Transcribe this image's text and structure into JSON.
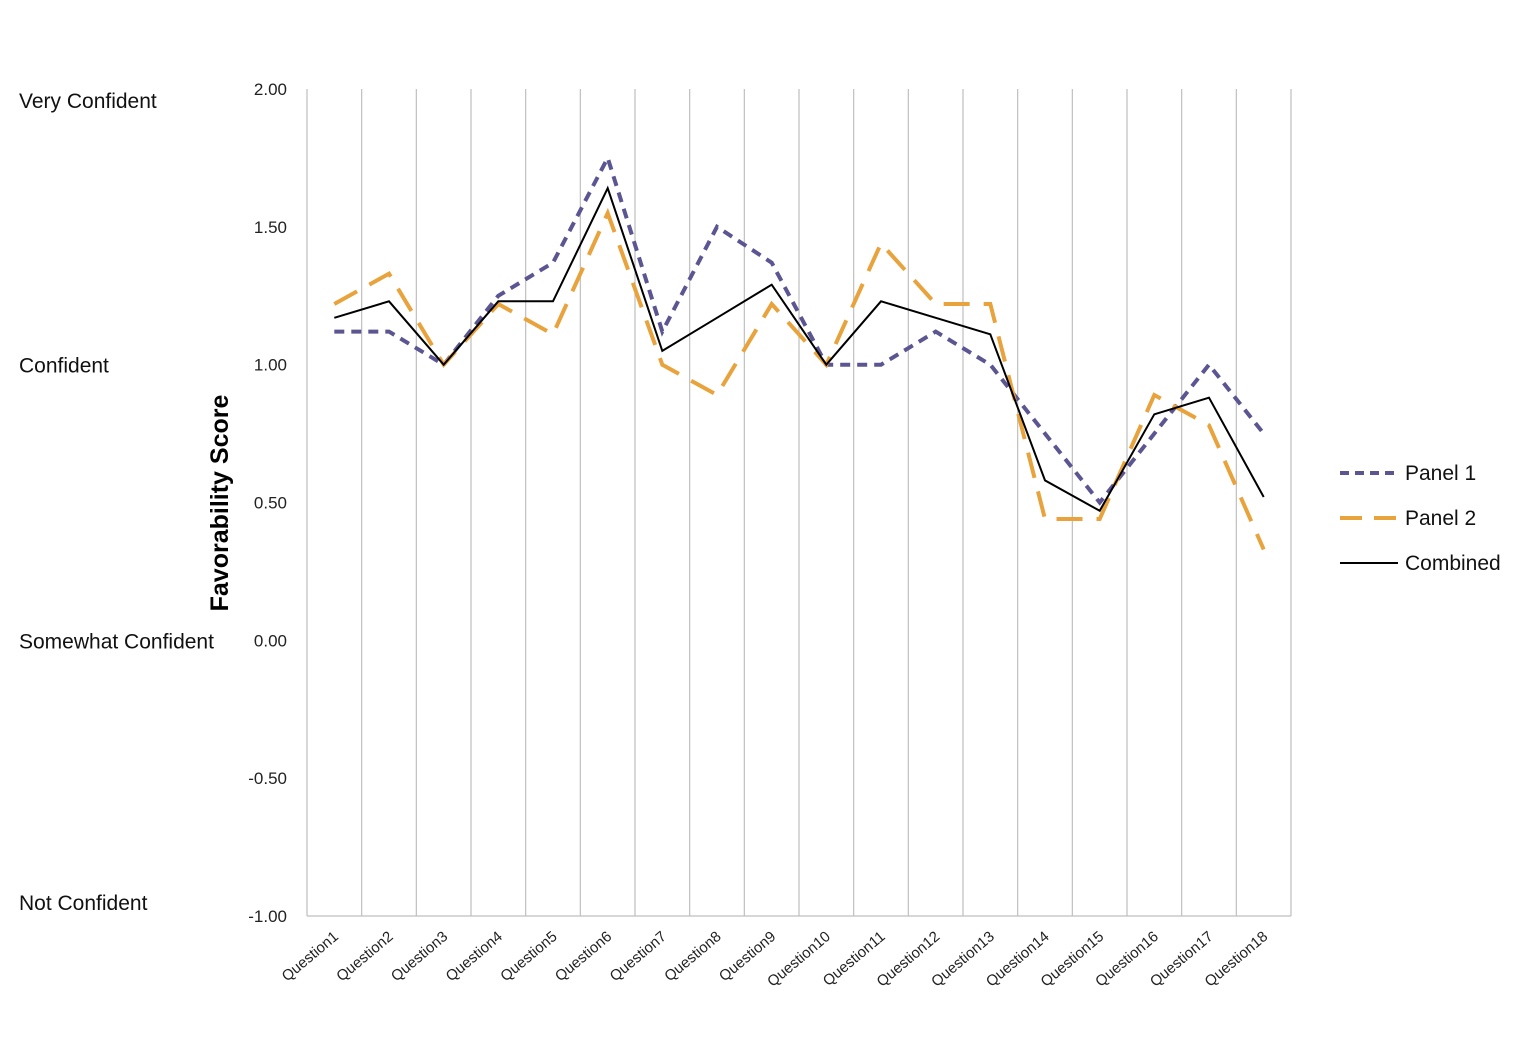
{
  "chart_data": {
    "type": "line",
    "title": "",
    "xlabel": "",
    "ylabel": "Favorability Score",
    "ylim": [
      -1.0,
      2.0
    ],
    "y_ticks": [
      2.0,
      1.5,
      1.0,
      0.5,
      0.0,
      -0.5,
      -1.0
    ],
    "y_tick_labels": [
      "2.00",
      "1.50",
      "1.00",
      "0.50",
      "0.00",
      "-0.50",
      "-1.00"
    ],
    "confidence_labels": [
      {
        "value": 2.0,
        "label": "Very Confident"
      },
      {
        "value": 1.0,
        "label": "Confident"
      },
      {
        "value": 0.0,
        "label": "Somewhat Confident"
      },
      {
        "value": -1.0,
        "label": "Not Confident"
      }
    ],
    "categories": [
      "Question1",
      "Question2",
      "Question3",
      "Question4",
      "Question5",
      "Question6",
      "Question7",
      "Question8",
      "Question9",
      "Question10",
      "Question11",
      "Question12",
      "Question13",
      "Question14",
      "Question15",
      "Question16",
      "Question17",
      "Question18"
    ],
    "grid": "vertical",
    "legend_position": "right",
    "series": [
      {
        "name": "Panel 1",
        "color": "#5b5592",
        "dash": "short",
        "values": [
          1.12,
          1.12,
          1.0,
          1.25,
          1.37,
          1.75,
          1.12,
          1.5,
          1.37,
          1.0,
          1.0,
          1.12,
          1.0,
          0.75,
          0.5,
          0.75,
          1.0,
          0.75
        ]
      },
      {
        "name": "Panel 2",
        "color": "#e8a33d",
        "dash": "long",
        "values": [
          1.22,
          1.33,
          1.0,
          1.22,
          1.11,
          1.55,
          1.0,
          0.89,
          1.22,
          1.0,
          1.44,
          1.22,
          1.22,
          0.44,
          0.44,
          0.89,
          0.78,
          0.33
        ]
      },
      {
        "name": "Combined",
        "color": "#000000",
        "dash": "solid",
        "values": [
          1.17,
          1.23,
          1.0,
          1.23,
          1.23,
          1.64,
          1.05,
          1.17,
          1.29,
          1.0,
          1.23,
          1.17,
          1.11,
          0.58,
          0.47,
          0.82,
          0.88,
          0.52
        ]
      }
    ]
  }
}
